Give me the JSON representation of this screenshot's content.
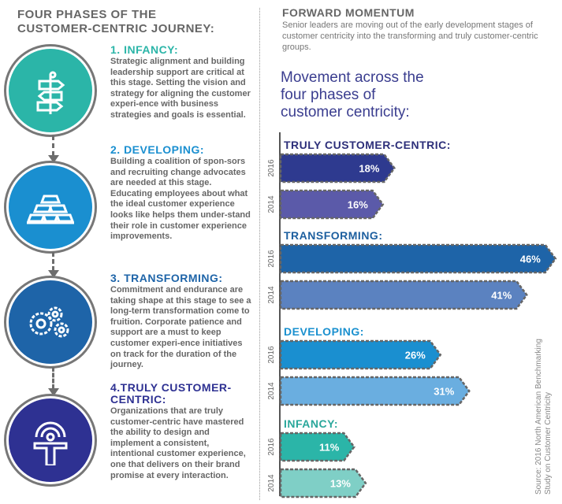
{
  "left": {
    "title_line1": "FOUR PHASES OF THE",
    "title_line2": "CUSTOMER-CENTRIC JOURNEY:",
    "phases": [
      {
        "title": "1. INFANCY:",
        "icon": "signpost-icon",
        "color": "#2bb5a8",
        "text": "Strategic alignment and building leadership support are critical at this stage. Setting the vision and strategy for aligning the customer experi-ence with business strategies and goals is essential."
      },
      {
        "title": "2. DEVELOPING:",
        "icon": "gold-bars-icon",
        "color": "#1a8fd0",
        "text": "Building a coalition of spon-sors and recruiting change advocates are needed at this stage. Educating employees about what the ideal customer experience looks like helps them under-stand their role in customer experience improvements."
      },
      {
        "title": "3. TRANSFORMING:",
        "icon": "gears-icon",
        "color": "#1e64a8",
        "text": "Commitment and endurance are taking shape at this stage to see a long-term transformation come to fruition. Corporate patience and support are a must to keep customer experi-ence initiatives on track for the duration of the journey."
      },
      {
        "title": "4.TRULY CUSTOMER-CENTRIC:",
        "icon": "person-signal-icon",
        "color": "#2e3192",
        "text": "Organizations that are truly customer-centric have mastered the ability to design and implement a consistent, intentional customer experience, one that delivers on their brand promise at every interaction."
      }
    ]
  },
  "right": {
    "title": "FORWARD MOMENTUM",
    "intro": "Senior leaders are moving out of the early development stages of customer centricity into the transforming and truly customer-centric groups.",
    "source": "Source: 2016 North American Benchmarking Study on Customer Centricity"
  },
  "chart_data": {
    "type": "bar",
    "orientation": "horizontal",
    "title": "Movement across the four phases of customer centricity:",
    "unit": "%",
    "groups": [
      {
        "name": "TRULY CUSTOMER-CENTRIC:",
        "color": "#2d2f7a",
        "bars": [
          {
            "year": "2016",
            "value": 18,
            "label": "18%",
            "color": "#2e3a8f"
          },
          {
            "year": "2014",
            "value": 16,
            "label": "16%",
            "color": "#5b5aa9"
          }
        ]
      },
      {
        "name": "TRANSFORMING:",
        "color": "#1d5f9f",
        "bars": [
          {
            "year": "2016",
            "value": 46,
            "label": "46%",
            "color": "#1e64a8"
          },
          {
            "year": "2014",
            "value": 41,
            "label": "41%",
            "color": "#5b82c0"
          }
        ]
      },
      {
        "name": "DEVELOPING:",
        "color": "#1a90cf",
        "bars": [
          {
            "year": "2016",
            "value": 26,
            "label": "26%",
            "color": "#1a8fd0"
          },
          {
            "year": "2014",
            "value": 31,
            "label": "31%",
            "color": "#6aaee0"
          }
        ]
      },
      {
        "name": "INFANCY:",
        "color": "#2aa79b",
        "bars": [
          {
            "year": "2016",
            "value": 11,
            "label": "11%",
            "color": "#2bb5a8"
          },
          {
            "year": "2014",
            "value": 13,
            "label": "13%",
            "color": "#7fcfc6"
          }
        ]
      }
    ]
  }
}
